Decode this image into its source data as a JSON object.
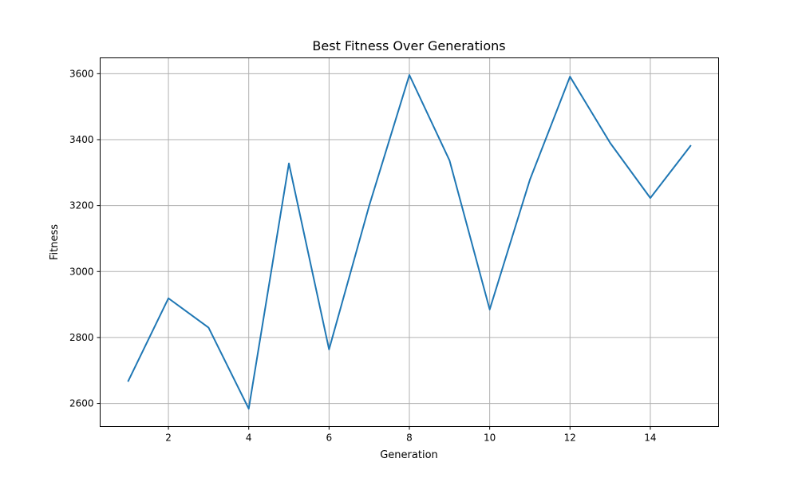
{
  "chart_data": {
    "type": "line",
    "title": "Best Fitness Over Generations",
    "xlabel": "Generation",
    "ylabel": "Fitness",
    "xlim": [
      0.3,
      15.7
    ],
    "ylim": [
      2530,
      3648
    ],
    "xticks": [
      2,
      4,
      6,
      8,
      10,
      12,
      14
    ],
    "yticks": [
      2600,
      2800,
      3000,
      3200,
      3400,
      3600
    ],
    "grid": true,
    "legend": "none",
    "series": [
      {
        "color": "#1f77b4",
        "x": [
          1,
          2,
          3,
          4,
          5,
          6,
          7,
          8,
          9,
          10,
          11,
          12,
          13,
          14,
          15
        ],
        "y": [
          2668,
          2919,
          2830,
          2584,
          3328,
          2764,
          3200,
          3596,
          3337,
          2885,
          3278,
          3591,
          3390,
          3223,
          3381
        ]
      }
    ]
  }
}
